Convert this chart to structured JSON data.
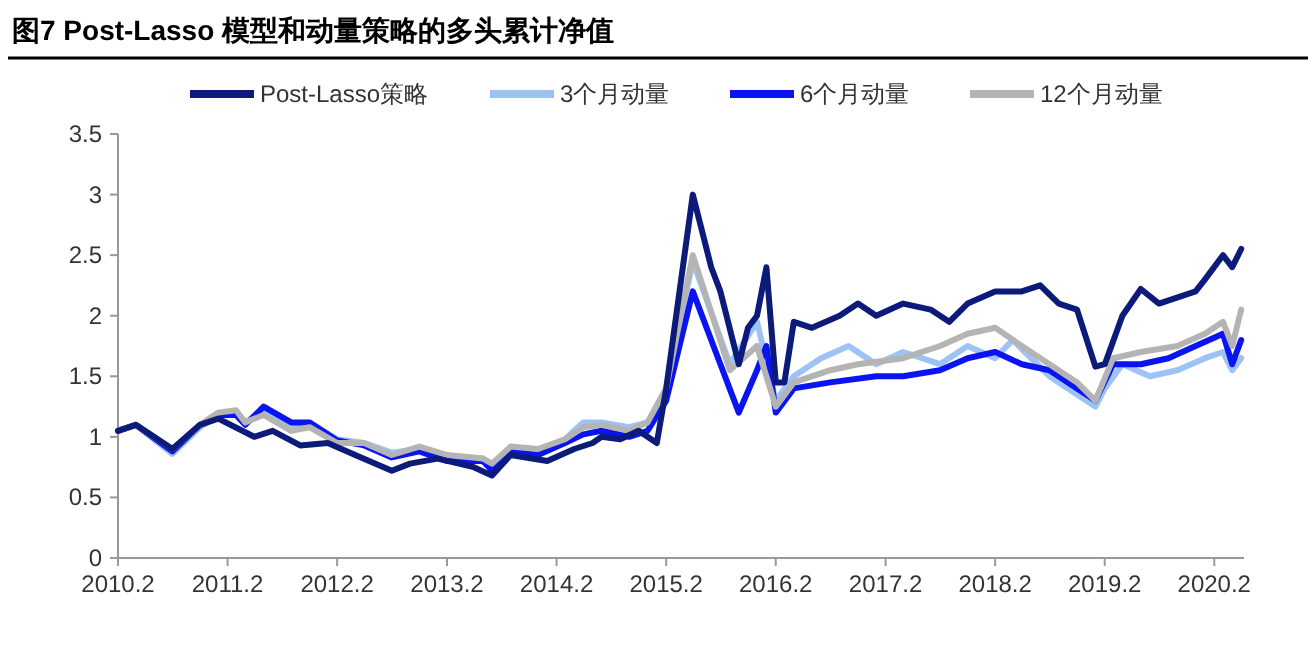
{
  "chart_data": {
    "type": "line",
    "title": "图7  Post-Lasso 模型和动量策略的多头累计净值",
    "legend": "top",
    "grid": false,
    "marker": "none",
    "line_style": "solid",
    "xlim": [
      "2010-02-01",
      "2020-05-10"
    ],
    "ylim": [
      0,
      3.5
    ],
    "yticks": [
      0,
      0.5,
      1,
      1.5,
      2,
      2.5,
      3,
      3.5
    ],
    "xticks": [
      {
        "value": "2010-02-01",
        "label": "2010.2"
      },
      {
        "value": "2011-02-01",
        "label": "2011.2"
      },
      {
        "value": "2012-02-01",
        "label": "2012.2"
      },
      {
        "value": "2013-02-01",
        "label": "2013.2"
      },
      {
        "value": "2014-02-01",
        "label": "2014.2"
      },
      {
        "value": "2015-02-01",
        "label": "2015.2"
      },
      {
        "value": "2016-02-01",
        "label": "2016.2"
      },
      {
        "value": "2017-02-01",
        "label": "2017.2"
      },
      {
        "value": "2018-02-01",
        "label": "2018.2"
      },
      {
        "value": "2019-02-01",
        "label": "2019.2"
      },
      {
        "value": "2020-02-01",
        "label": "2020.2"
      }
    ],
    "series": [
      {
        "name": "3个月动量",
        "color": "#9dc3f5",
        "x": [
          "2010-02",
          "2010-04",
          "2010-08",
          "2010-11",
          "2011-01",
          "2011-03",
          "2011-04",
          "2011-06",
          "2011-09",
          "2011-11",
          "2012-02",
          "2012-05",
          "2012-08",
          "2012-11",
          "2013-02",
          "2013-06",
          "2013-07",
          "2013-09",
          "2013-12",
          "2014-03",
          "2014-05",
          "2014-07",
          "2014-10",
          "2014-12",
          "2015-02",
          "2015-05",
          "2015-09",
          "2015-12",
          "2016-02",
          "2016-04",
          "2016-07",
          "2016-10",
          "2017-01",
          "2017-04",
          "2017-08",
          "2017-11",
          "2018-02",
          "2018-04",
          "2018-08",
          "2018-11",
          "2019-01",
          "2019-02",
          "2019-04",
          "2019-07",
          "2019-10",
          "2020-01",
          "2020-03",
          "2020-04",
          "2020-05"
        ],
        "values": [
          1.05,
          1.1,
          0.86,
          1.08,
          1.18,
          1.2,
          1.12,
          1.22,
          1.1,
          1.12,
          0.98,
          0.95,
          0.87,
          0.9,
          0.82,
          0.82,
          0.75,
          0.9,
          0.88,
          0.98,
          1.12,
          1.12,
          1.08,
          1.12,
          1.4,
          2.45,
          1.6,
          1.95,
          1.3,
          1.5,
          1.65,
          1.75,
          1.6,
          1.7,
          1.6,
          1.75,
          1.65,
          1.8,
          1.5,
          1.35,
          1.25,
          1.4,
          1.6,
          1.5,
          1.55,
          1.65,
          1.7,
          1.55,
          1.65
        ]
      },
      {
        "name": "6个月动量",
        "color": "#0a14f0",
        "x": [
          "2010-02",
          "2010-04",
          "2010-08",
          "2010-11",
          "2011-01",
          "2011-03",
          "2011-04",
          "2011-06",
          "2011-09",
          "2011-11",
          "2012-02",
          "2012-05",
          "2012-08",
          "2012-11",
          "2013-02",
          "2013-06",
          "2013-07",
          "2013-09",
          "2013-12",
          "2014-03",
          "2014-05",
          "2014-07",
          "2014-10",
          "2014-12",
          "2015-02",
          "2015-05",
          "2015-08",
          "2015-10",
          "2015-12",
          "2016-01",
          "2016-02",
          "2016-04",
          "2016-08",
          "2017-01",
          "2017-04",
          "2017-08",
          "2017-11",
          "2018-02",
          "2018-05",
          "2018-08",
          "2018-11",
          "2019-01",
          "2019-03",
          "2019-06",
          "2019-09",
          "2019-12",
          "2020-03",
          "2020-04",
          "2020-05"
        ],
        "values": [
          1.05,
          1.1,
          0.88,
          1.1,
          1.18,
          1.18,
          1.1,
          1.25,
          1.12,
          1.12,
          0.97,
          0.93,
          0.83,
          0.88,
          0.8,
          0.8,
          0.72,
          0.88,
          0.85,
          0.95,
          1.02,
          1.05,
          1.0,
          1.05,
          1.3,
          2.2,
          1.6,
          1.2,
          1.55,
          1.75,
          1.2,
          1.4,
          1.45,
          1.5,
          1.5,
          1.55,
          1.65,
          1.7,
          1.6,
          1.55,
          1.4,
          1.3,
          1.6,
          1.6,
          1.65,
          1.75,
          1.85,
          1.6,
          1.8
        ]
      },
      {
        "name": "12个月动量",
        "color": "#b4b4b4",
        "x": [
          "2010-02",
          "2010-04",
          "2010-08",
          "2010-11",
          "2011-01",
          "2011-03",
          "2011-04",
          "2011-06",
          "2011-09",
          "2011-11",
          "2012-02",
          "2012-05",
          "2012-08",
          "2012-11",
          "2013-02",
          "2013-06",
          "2013-07",
          "2013-09",
          "2013-12",
          "2014-03",
          "2014-05",
          "2014-07",
          "2014-10",
          "2014-12",
          "2015-02",
          "2015-05",
          "2015-09",
          "2015-12",
          "2016-02",
          "2016-04",
          "2016-08",
          "2016-11",
          "2017-04",
          "2017-08",
          "2017-11",
          "2018-02",
          "2018-05",
          "2018-08",
          "2018-11",
          "2019-01",
          "2019-03",
          "2019-06",
          "2019-10",
          "2020-01",
          "2020-03",
          "2020-04",
          "2020-05"
        ],
        "values": [
          1.05,
          1.1,
          0.9,
          1.1,
          1.2,
          1.22,
          1.12,
          1.18,
          1.05,
          1.08,
          0.95,
          0.95,
          0.85,
          0.92,
          0.85,
          0.82,
          0.78,
          0.92,
          0.9,
          0.98,
          1.08,
          1.1,
          1.05,
          1.12,
          1.4,
          2.5,
          1.55,
          1.75,
          1.25,
          1.45,
          1.55,
          1.6,
          1.65,
          1.75,
          1.85,
          1.9,
          1.75,
          1.6,
          1.45,
          1.3,
          1.65,
          1.7,
          1.75,
          1.85,
          1.95,
          1.75,
          2.05
        ]
      },
      {
        "name": "Post-Lasso策略",
        "color": "#0c1a7a",
        "x": [
          "2010-02",
          "2010-04",
          "2010-08",
          "2010-11",
          "2011-01",
          "2011-05",
          "2011-07",
          "2011-10",
          "2012-01",
          "2012-04",
          "2012-08",
          "2012-10",
          "2013-01",
          "2013-05",
          "2013-07",
          "2013-09",
          "2014-01",
          "2014-04",
          "2014-06",
          "2014-07",
          "2014-09",
          "2014-11",
          "2015-01",
          "2015-02",
          "2015-05",
          "2015-07",
          "2015-08",
          "2015-10",
          "2015-11",
          "2015-12",
          "2016-01",
          "2016-02",
          "2016-03",
          "2016-04",
          "2016-06",
          "2016-09",
          "2016-11",
          "2017-01",
          "2017-04",
          "2017-07",
          "2017-09",
          "2017-11",
          "2018-02",
          "2018-05",
          "2018-07",
          "2018-09",
          "2018-11",
          "2019-01",
          "2019-02",
          "2019-04",
          "2019-06",
          "2019-08",
          "2019-12",
          "2020-01",
          "2020-03",
          "2020-04",
          "2020-05"
        ],
        "values": [
          1.05,
          1.1,
          0.9,
          1.1,
          1.15,
          1.0,
          1.05,
          0.93,
          0.95,
          0.85,
          0.72,
          0.78,
          0.82,
          0.75,
          0.68,
          0.85,
          0.8,
          0.9,
          0.95,
          1.0,
          0.98,
          1.05,
          0.95,
          1.4,
          3.0,
          2.4,
          2.2,
          1.6,
          1.9,
          2.0,
          2.4,
          1.45,
          1.45,
          1.95,
          1.9,
          2.0,
          2.1,
          2.0,
          2.1,
          2.05,
          1.95,
          2.1,
          2.2,
          2.2,
          2.25,
          2.1,
          2.05,
          1.58,
          1.6,
          2.0,
          2.22,
          2.1,
          2.2,
          2.3,
          2.5,
          2.4,
          2.55
        ]
      }
    ]
  }
}
